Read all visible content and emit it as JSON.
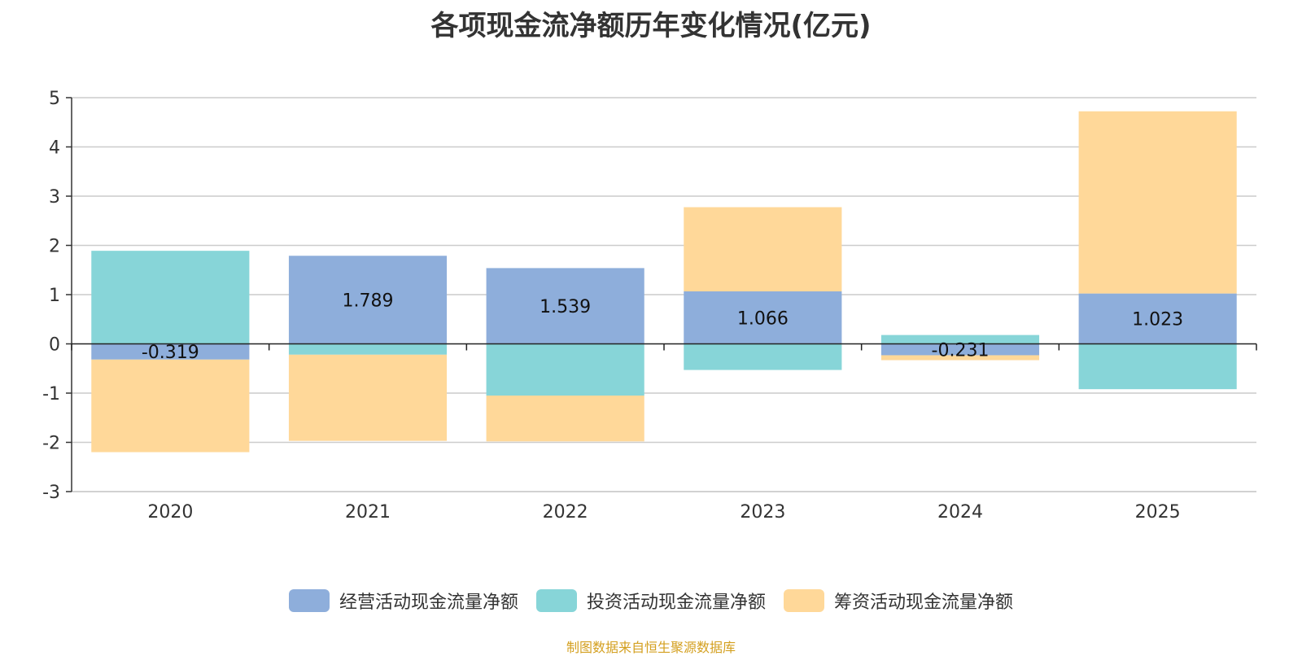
{
  "chart_data": {
    "type": "bar",
    "stacked": true,
    "title": "各项现金流净额历年变化情况(亿元)",
    "categories": [
      "2020",
      "2021",
      "2022",
      "2023",
      "2024",
      "2025"
    ],
    "ylim": [
      -3,
      5
    ],
    "yticks": [
      5,
      4,
      3,
      2,
      1,
      0,
      -1,
      -2,
      -3
    ],
    "grid": true,
    "legend_position": "bottom",
    "series": [
      {
        "name": "经营活动现金流量净额",
        "color": "#8eaedb",
        "values": [
          -0.319,
          1.789,
          1.539,
          1.066,
          -0.231,
          1.023
        ]
      },
      {
        "name": "投资活动现金流量净额",
        "color": "#87d5d8",
        "values": [
          1.89,
          -0.22,
          -1.05,
          -0.53,
          0.18,
          -0.92
        ]
      },
      {
        "name": "筹资活动现金流量净额",
        "color": "#ffd899",
        "values": [
          -1.88,
          -1.75,
          -0.93,
          1.71,
          -0.1,
          3.7
        ]
      }
    ],
    "data_labels": [
      "-0.319",
      "1.789",
      "1.539",
      "1.066",
      "-0.231",
      "1.023"
    ]
  },
  "footer": {
    "source": "制图数据来自恒生聚源数据库"
  }
}
